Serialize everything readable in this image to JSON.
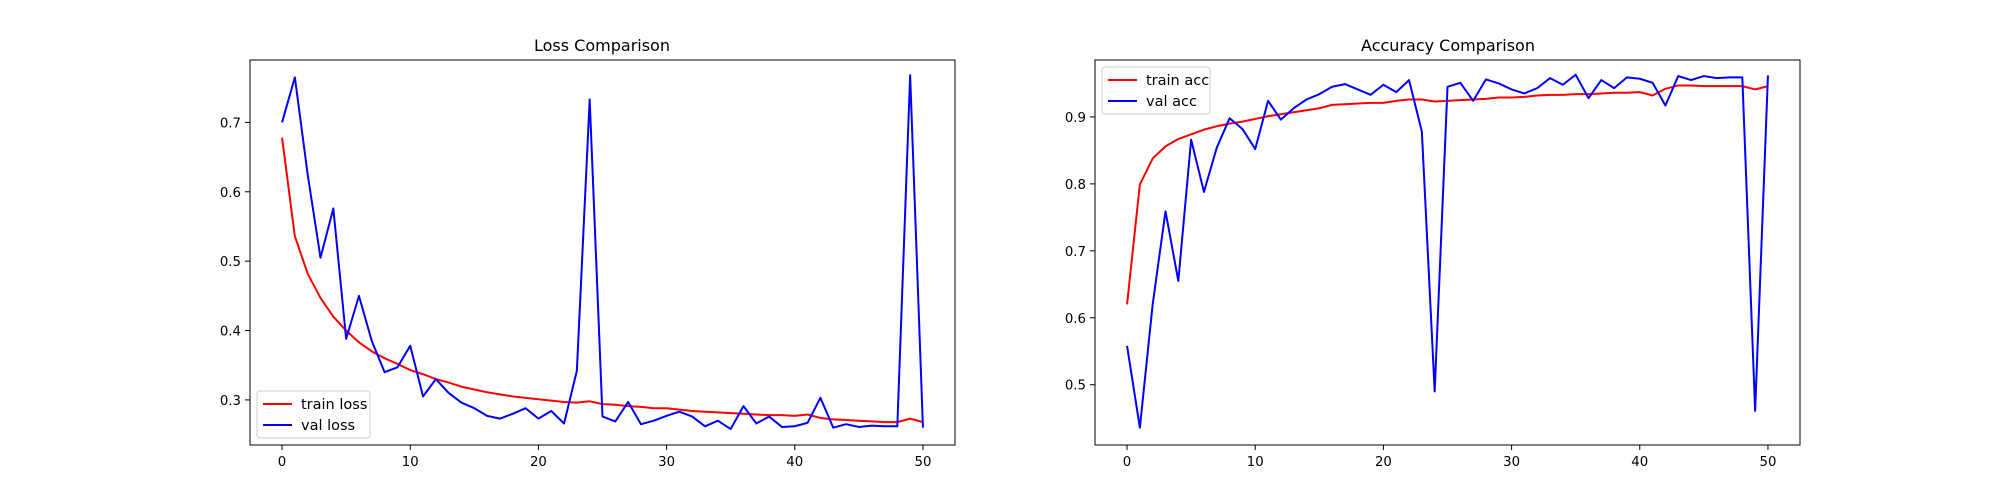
{
  "chart_data": [
    {
      "type": "line",
      "title": "Loss Comparison",
      "xlabel": "",
      "ylabel": "",
      "xlim": [
        -2.5,
        52.5
      ],
      "ylim": [
        0.235,
        0.79
      ],
      "xticks": [
        0,
        10,
        20,
        30,
        40,
        50
      ],
      "yticks": [
        0.3,
        0.4,
        0.5,
        0.6,
        0.7
      ],
      "legend": "lower-left",
      "grid": false,
      "x": [
        0,
        1,
        2,
        3,
        4,
        5,
        6,
        7,
        8,
        9,
        10,
        11,
        12,
        13,
        14,
        15,
        16,
        17,
        18,
        19,
        20,
        21,
        22,
        23,
        24,
        25,
        26,
        27,
        28,
        29,
        30,
        31,
        32,
        33,
        34,
        35,
        36,
        37,
        38,
        39,
        40,
        41,
        42,
        43,
        44,
        45,
        46,
        47,
        48,
        49,
        50
      ],
      "series": [
        {
          "name": "train loss",
          "color": "#ff0000",
          "values": [
            0.678,
            0.536,
            0.482,
            0.447,
            0.42,
            0.4,
            0.383,
            0.37,
            0.36,
            0.352,
            0.343,
            0.337,
            0.33,
            0.325,
            0.319,
            0.315,
            0.311,
            0.308,
            0.305,
            0.303,
            0.301,
            0.299,
            0.297,
            0.296,
            0.298,
            0.294,
            0.293,
            0.291,
            0.29,
            0.288,
            0.288,
            0.286,
            0.284,
            0.283,
            0.282,
            0.281,
            0.28,
            0.279,
            0.278,
            0.278,
            0.277,
            0.279,
            0.274,
            0.272,
            0.271,
            0.27,
            0.269,
            0.268,
            0.268,
            0.273,
            0.268
          ]
        },
        {
          "name": "val loss",
          "color": "#0000ff",
          "values": [
            0.7,
            0.765,
            0.625,
            0.505,
            0.576,
            0.388,
            0.45,
            0.385,
            0.34,
            0.347,
            0.378,
            0.305,
            0.33,
            0.31,
            0.296,
            0.288,
            0.277,
            0.273,
            0.28,
            0.288,
            0.273,
            0.284,
            0.266,
            0.342,
            0.733,
            0.276,
            0.269,
            0.297,
            0.265,
            0.27,
            0.277,
            0.283,
            0.276,
            0.262,
            0.27,
            0.258,
            0.291,
            0.266,
            0.276,
            0.261,
            0.262,
            0.267,
            0.303,
            0.26,
            0.265,
            0.261,
            0.263,
            0.262,
            0.262,
            0.768,
            0.26
          ]
        }
      ]
    },
    {
      "type": "line",
      "title": "Accuracy Comparison",
      "xlabel": "",
      "ylabel": "",
      "xlim": [
        -2.5,
        52.5
      ],
      "ylim": [
        0.41,
        0.985
      ],
      "xticks": [
        0,
        10,
        20,
        30,
        40,
        50
      ],
      "yticks": [
        0.5,
        0.6,
        0.7,
        0.8,
        0.9
      ],
      "legend": "upper-left",
      "grid": false,
      "x": [
        0,
        1,
        2,
        3,
        4,
        5,
        6,
        7,
        8,
        9,
        10,
        11,
        12,
        13,
        14,
        15,
        16,
        17,
        18,
        19,
        20,
        21,
        22,
        23,
        24,
        25,
        26,
        27,
        28,
        29,
        30,
        31,
        32,
        33,
        34,
        35,
        36,
        37,
        38,
        39,
        40,
        41,
        42,
        43,
        44,
        45,
        46,
        47,
        48,
        49,
        50
      ],
      "series": [
        {
          "name": "train acc",
          "color": "#ff0000",
          "values": [
            0.62,
            0.799,
            0.838,
            0.856,
            0.867,
            0.874,
            0.881,
            0.886,
            0.89,
            0.893,
            0.897,
            0.901,
            0.904,
            0.907,
            0.91,
            0.913,
            0.918,
            0.919,
            0.92,
            0.921,
            0.921,
            0.924,
            0.926,
            0.926,
            0.923,
            0.924,
            0.925,
            0.926,
            0.927,
            0.929,
            0.929,
            0.93,
            0.932,
            0.933,
            0.933,
            0.934,
            0.934,
            0.935,
            0.936,
            0.936,
            0.937,
            0.932,
            0.942,
            0.947,
            0.947,
            0.946,
            0.946,
            0.946,
            0.946,
            0.941,
            0.946
          ]
        },
        {
          "name": "val acc",
          "color": "#0000ff",
          "values": [
            0.558,
            0.436,
            0.62,
            0.759,
            0.655,
            0.866,
            0.788,
            0.854,
            0.898,
            0.882,
            0.852,
            0.924,
            0.896,
            0.913,
            0.926,
            0.934,
            0.945,
            0.949,
            0.941,
            0.933,
            0.948,
            0.937,
            0.955,
            0.878,
            0.49,
            0.945,
            0.951,
            0.924,
            0.956,
            0.95,
            0.941,
            0.935,
            0.943,
            0.958,
            0.948,
            0.963,
            0.928,
            0.955,
            0.943,
            0.959,
            0.957,
            0.951,
            0.917,
            0.961,
            0.955,
            0.961,
            0.958,
            0.959,
            0.959,
            0.461,
            0.962
          ]
        }
      ]
    }
  ]
}
